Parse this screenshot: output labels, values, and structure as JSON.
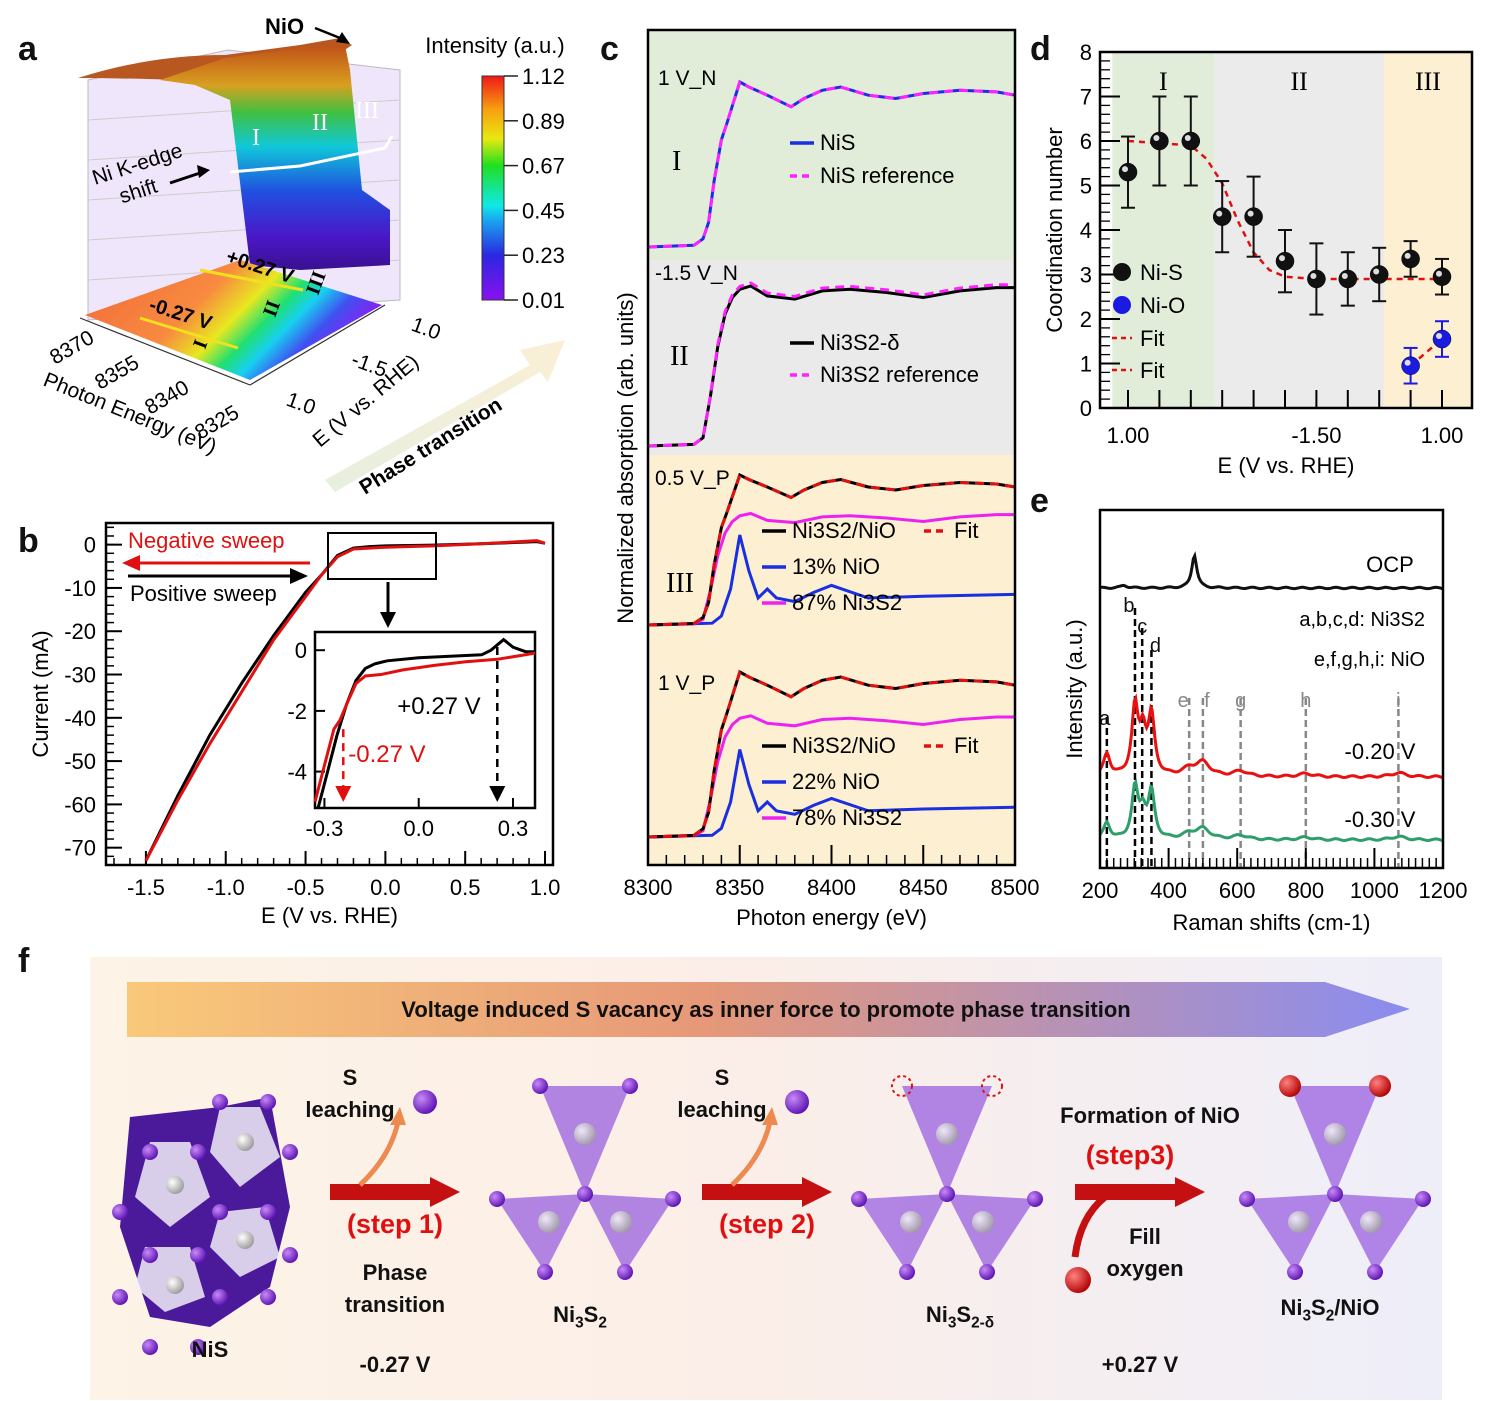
{
  "panel_labels": {
    "a": "a",
    "b": "b",
    "c": "c",
    "d": "d",
    "e": "e",
    "f": "f"
  },
  "chart_data": [
    {
      "id": "a",
      "type": "surface3d",
      "title": "",
      "colorbar": {
        "label": "Intensity (a.u.)",
        "ticks": [
          "1.12",
          "0.89",
          "0.67",
          "0.45",
          "0.23",
          "0.01"
        ],
        "range": [
          0.01,
          1.12
        ]
      },
      "x_axis": {
        "label": "Photon Energy (eV)",
        "ticks": [
          "8370",
          "8355",
          "8340",
          "8325"
        ]
      },
      "y_axis": {
        "label": "E (V vs. RHE)",
        "ticks": [
          "1.0",
          "-1.5",
          "1.0"
        ]
      },
      "annotations": [
        "NiO",
        "Ni K-edge shift",
        "I",
        "II",
        "III",
        "-0.27 V",
        "+0.27 V",
        "Phase transition"
      ],
      "regions": [
        "I",
        "II",
        "III"
      ]
    },
    {
      "id": "b",
      "type": "line",
      "xlabel": "E (V vs. RHE)",
      "ylabel": "Current (mA)",
      "xlim": [
        -1.75,
        1.05
      ],
      "ylim": [
        -74,
        5
      ],
      "xticks": [
        "-1.5",
        "-1.0",
        "-0.5",
        "0.0",
        "0.5",
        "1.0"
      ],
      "yticks": [
        "0",
        "-10",
        "-20",
        "-30",
        "-40",
        "-50",
        "-60",
        "-70"
      ],
      "series": [
        {
          "name": "Positive sweep",
          "color": "#000000",
          "x": [
            -1.5,
            -1.3,
            -1.1,
            -0.9,
            -0.7,
            -0.5,
            -0.4,
            -0.3,
            -0.2,
            -0.1,
            0.0,
            0.3,
            0.6,
            0.95,
            1.0
          ],
          "y": [
            -73,
            -58,
            -44,
            -32,
            -21,
            -11,
            -7,
            -2.5,
            -0.8,
            -0.45,
            -0.3,
            -0.1,
            0.2,
            0.7,
            0.3
          ]
        },
        {
          "name": "Negative sweep",
          "color": "#e01010",
          "x": [
            -1.5,
            -1.3,
            -1.1,
            -0.9,
            -0.7,
            -0.5,
            -0.4,
            -0.3,
            -0.2,
            -0.1,
            0.0,
            0.3,
            0.6,
            0.95,
            1.0
          ],
          "y": [
            -73,
            -59,
            -46,
            -34,
            -22,
            -12,
            -7,
            -2.8,
            -1.0,
            -0.8,
            -0.6,
            -0.3,
            0.2,
            0.9,
            0.3
          ]
        }
      ],
      "annotations": {
        "negative": "Negative sweep",
        "positive": "Positive sweep"
      },
      "inset": {
        "xlim": [
          -0.33,
          0.37
        ],
        "ylim": [
          -5.2,
          0.6
        ],
        "xticks": [
          "-0.3",
          "0.0",
          "0.3"
        ],
        "yticks": [
          "0",
          "-2",
          "-4"
        ],
        "series": [
          {
            "name": "Positive sweep",
            "color": "#000000",
            "x": [
              -0.32,
              -0.29,
              -0.26,
              -0.23,
              -0.2,
              -0.17,
              -0.14,
              -0.1,
              0.0,
              0.1,
              0.2,
              0.23,
              0.27,
              0.3,
              0.34,
              0.37
            ],
            "y": [
              -5.2,
              -4.0,
              -2.8,
              -1.8,
              -1.0,
              -0.6,
              -0.45,
              -0.35,
              -0.25,
              -0.2,
              -0.15,
              0.0,
              0.35,
              0.1,
              -0.05,
              -0.05
            ]
          },
          {
            "name": "Negative sweep",
            "color": "#e01010",
            "x": [
              -0.33,
              -0.3,
              -0.27,
              -0.25,
              -0.23,
              -0.2,
              -0.17,
              -0.12,
              -0.05,
              0.05,
              0.15,
              0.25,
              0.37
            ],
            "y": [
              -5.0,
              -3.8,
              -2.6,
              -2.3,
              -1.8,
              -1.1,
              -0.85,
              -0.8,
              -0.65,
              -0.5,
              -0.38,
              -0.3,
              -0.1
            ]
          }
        ],
        "markers": [
          {
            "label": "-0.27 V",
            "x": -0.24,
            "color": "#e01010"
          },
          {
            "label": "+0.27 V",
            "x": 0.25,
            "color": "#000000"
          }
        ]
      }
    },
    {
      "id": "c",
      "type": "line",
      "xlabel": "Photon energy (eV)",
      "ylabel": "Normalized absorption (arb. units)",
      "xlim": [
        8300,
        8500
      ],
      "xticks": [
        "8300",
        "8350",
        "8400",
        "8450",
        "8500"
      ],
      "regions": [
        {
          "name": "I",
          "label": "1 V_N",
          "color": "#e2edd9",
          "legend": [
            {
              "name": "NiS",
              "color": "#1a2fe0",
              "dash": false
            },
            {
              "name": "NiS reference",
              "color": "#ff22ff",
              "dash": true
            }
          ]
        },
        {
          "name": "II",
          "label": "-1.5 V_N",
          "color": "#eaeaea",
          "legend": [
            {
              "name": "Ni3S2-δ",
              "color": "#000000",
              "dash": false
            },
            {
              "name": "Ni3S2 reference",
              "color": "#ff22ff",
              "dash": true
            }
          ]
        },
        {
          "name": "III",
          "label": "0.5 V_P",
          "color": "#fcefd2",
          "legend": [
            {
              "name": "Ni3S2/NiO",
              "color": "#000000",
              "dash": false
            },
            {
              "name": "Fit",
              "color": "#e01010",
              "dash": true
            },
            {
              "name": "13% NiO",
              "color": "#1a2fe0",
              "dash": false
            },
            {
              "name": "87% Ni3S2",
              "color": "#ee22ee",
              "dash": false
            }
          ]
        },
        {
          "name": "",
          "label": "1 V_P",
          "color": "#fcefd2",
          "legend": [
            {
              "name": "Ni3S2/NiO",
              "color": "#000000",
              "dash": false
            },
            {
              "name": "Fit",
              "color": "#e01010",
              "dash": true
            },
            {
              "name": "22% NiO",
              "color": "#1a2fe0",
              "dash": false
            },
            {
              "name": "78% Ni3S2",
              "color": "#ee22ee",
              "dash": false
            }
          ]
        }
      ],
      "curves": {
        "nis_x": [
          8300,
          8325,
          8330,
          8333,
          8336,
          8340,
          8343,
          8350,
          8355,
          8365,
          8378,
          8385,
          8395,
          8405,
          8420,
          8435,
          8450,
          8470,
          8490,
          8500
        ],
        "nis_y": [
          0,
          0.01,
          0.05,
          0.15,
          0.4,
          0.65,
          0.75,
          1.0,
          0.97,
          0.92,
          0.85,
          0.9,
          0.95,
          0.97,
          0.92,
          0.9,
          0.93,
          0.95,
          0.94,
          0.92
        ],
        "ni3s2_x": [
          8300,
          8325,
          8330,
          8334,
          8338,
          8342,
          8346,
          8350,
          8356,
          8365,
          8380,
          8395,
          8410,
          8430,
          8450,
          8470,
          8490,
          8500
        ],
        "ni3s2_y": [
          0,
          0.01,
          0.05,
          0.3,
          0.6,
          0.8,
          0.9,
          0.95,
          0.97,
          0.91,
          0.89,
          0.94,
          0.95,
          0.93,
          0.9,
          0.94,
          0.96,
          0.96
        ],
        "nio_x": [
          8300,
          8335,
          8340,
          8345,
          8350,
          8355,
          8360,
          8365,
          8370,
          8380,
          8390,
          8400,
          8420,
          8450,
          8500
        ],
        "nio_y": [
          0,
          0.01,
          0.05,
          0.2,
          0.5,
          0.3,
          0.15,
          0.2,
          0.15,
          0.13,
          0.18,
          0.22,
          0.15,
          0.16,
          0.17
        ]
      }
    },
    {
      "id": "d",
      "type": "scatter",
      "xlabel": "E (V vs. RHE)",
      "ylabel": "Coordination number",
      "ylim": [
        0,
        8
      ],
      "yticks": [
        "0",
        "1",
        "2",
        "3",
        "4",
        "5",
        "6",
        "7",
        "8"
      ],
      "xticks": [
        {
          "index": 0,
          "label": "1.00"
        },
        {
          "index": 6,
          "label": "-1.50"
        },
        {
          "index": 10,
          "label": "1.00"
        }
      ],
      "n_points": 11,
      "regions": [
        {
          "name": "I",
          "from": -0.5,
          "to": 2.75,
          "color": "#e2edd9"
        },
        {
          "name": "II",
          "from": 2.75,
          "to": 8.15,
          "color": "#ebebeb"
        },
        {
          "name": "III",
          "from": 8.15,
          "to": 11.0,
          "color": "#fcefd2"
        }
      ],
      "series": [
        {
          "name": "Ni-S",
          "color": "#111111",
          "index": [
            0,
            1,
            2,
            3,
            4,
            5,
            6,
            7,
            8,
            9,
            10
          ],
          "y": [
            5.3,
            6.0,
            6.0,
            4.3,
            4.3,
            3.3,
            2.9,
            2.9,
            3.0,
            3.35,
            2.95
          ],
          "err": [
            0.8,
            1.0,
            1.0,
            0.8,
            0.9,
            0.7,
            0.8,
            0.6,
            0.6,
            0.4,
            0.4
          ]
        },
        {
          "name": "Ni-O",
          "color": "#1a1ae0",
          "index": [
            9,
            10
          ],
          "y": [
            0.95,
            1.55
          ],
          "err": [
            0.4,
            0.4
          ]
        }
      ],
      "fits": [
        {
          "name": "Fit",
          "color": "#e01010",
          "index": [
            0,
            1,
            2,
            2.5,
            3,
            3.5,
            4,
            4.5,
            5,
            6,
            7,
            8,
            9,
            10
          ],
          "y": [
            6.0,
            5.95,
            5.9,
            5.6,
            5.05,
            4.2,
            3.5,
            3.1,
            2.95,
            2.9,
            2.9,
            2.9,
            2.9,
            2.9
          ]
        },
        {
          "name": "Fit",
          "color": "#e01010",
          "index": [
            9,
            10
          ],
          "y": [
            0.95,
            1.55
          ]
        }
      ],
      "legend": [
        "Ni-S",
        "Ni-O",
        "Fit",
        "Fit"
      ]
    },
    {
      "id": "e",
      "type": "line",
      "xlabel": "Raman shifts (cm-1)",
      "ylabel": "Intensity (a.u.)",
      "xlim": [
        200,
        1200
      ],
      "xticks": [
        "200",
        "400",
        "600",
        "800",
        "1000",
        "1200"
      ],
      "series": [
        {
          "name": "OCP",
          "color": "#111111",
          "peaks": [
            [
              270,
              0.08
            ],
            [
              475,
              1.0
            ]
          ]
        },
        {
          "name": "-0.20 V",
          "color": "#e81010",
          "peaks": [
            [
              220,
              0.5
            ],
            [
              302,
              1.5
            ],
            [
              325,
              0.9
            ],
            [
              350,
              1.3
            ],
            [
              460,
              0.15
            ],
            [
              500,
              0.3
            ],
            [
              610,
              0.12
            ],
            [
              800,
              0.07
            ],
            [
              1070,
              0.09
            ]
          ]
        },
        {
          "name": "-0.30 V",
          "color": "#2e9e6a",
          "peaks": [
            [
              220,
              0.4
            ],
            [
              302,
              1.2
            ],
            [
              325,
              0.6
            ],
            [
              350,
              1.1
            ],
            [
              460,
              0.12
            ],
            [
              500,
              0.25
            ],
            [
              610,
              0.1
            ],
            [
              800,
              0.06
            ],
            [
              1070,
              0.08
            ]
          ]
        }
      ],
      "peak_lines": [
        {
          "label": "a",
          "x": 220,
          "color": "#000000"
        },
        {
          "label": "b",
          "x": 302,
          "color": "#000000"
        },
        {
          "label": "c",
          "x": 323,
          "color": "#000000"
        },
        {
          "label": "d",
          "x": 350,
          "color": "#000000"
        },
        {
          "label": "e",
          "x": 460,
          "color": "#888888"
        },
        {
          "label": "f",
          "x": 500,
          "color": "#888888"
        },
        {
          "label": "g",
          "x": 610,
          "color": "#888888"
        },
        {
          "label": "h",
          "x": 800,
          "color": "#888888"
        },
        {
          "label": "i",
          "x": 1070,
          "color": "#888888"
        }
      ],
      "notes": [
        "a,b,c,d: Ni3S2",
        "e,f,g,h,i: NiO"
      ]
    }
  ],
  "panel_f": {
    "banner": "Voltage induced S vacancy as inner force to promote phase transition",
    "s_leaching_1": [
      "S",
      "leaching"
    ],
    "s_leaching_2": [
      "S",
      "leaching"
    ],
    "step1": "(step 1)",
    "step2": "(step 2)",
    "step3": "(step3)",
    "phase_transition": [
      "Phase",
      "transition"
    ],
    "formation": "Formation of NiO",
    "fill_oxygen": [
      "Fill",
      "oxygen"
    ],
    "v1": "-0.27 V",
    "v2": "+0.27 V",
    "structures": [
      "NiS",
      "Ni3S2",
      "Ni3S2-δ",
      "Ni3S2/NiO"
    ]
  }
}
